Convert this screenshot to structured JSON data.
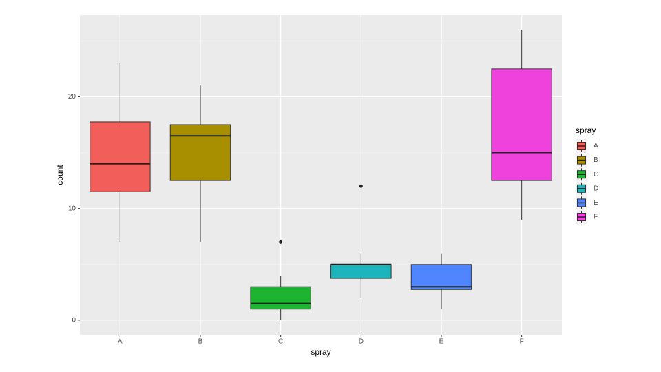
{
  "chart_data": {
    "type": "boxplot",
    "x_label": "spray",
    "y_label": "count",
    "legend_title": "spray",
    "categories": [
      "A",
      "B",
      "C",
      "D",
      "E",
      "F"
    ],
    "colors": [
      "#F25F5A",
      "#A88F00",
      "#1DB52F",
      "#1DB5BC",
      "#4F86FF",
      "#EF42DD"
    ],
    "boxes": [
      {
        "min": 7,
        "q1": 11.5,
        "median": 14,
        "q3": 17.75,
        "max": 23,
        "outliers": []
      },
      {
        "min": 7,
        "q1": 12.5,
        "median": 16.5,
        "q3": 17.5,
        "max": 21,
        "outliers": []
      },
      {
        "min": 0,
        "q1": 1,
        "median": 1.5,
        "q3": 3,
        "max": 4,
        "outliers": [
          7
        ]
      },
      {
        "min": 2,
        "q1": 3.75,
        "median": 5,
        "q3": 5,
        "max": 6,
        "outliers": [
          12
        ]
      },
      {
        "min": 1,
        "q1": 2.75,
        "median": 3,
        "q3": 5,
        "max": 6,
        "outliers": []
      },
      {
        "min": 9,
        "q1": 12.5,
        "median": 15,
        "q3": 22.5,
        "max": 26,
        "outliers": []
      }
    ],
    "ylim": [
      -1.3,
      27.3
    ],
    "yticks": [
      0,
      10,
      20
    ],
    "minor_yticks": [
      5,
      15,
      25
    ],
    "grid": true
  }
}
